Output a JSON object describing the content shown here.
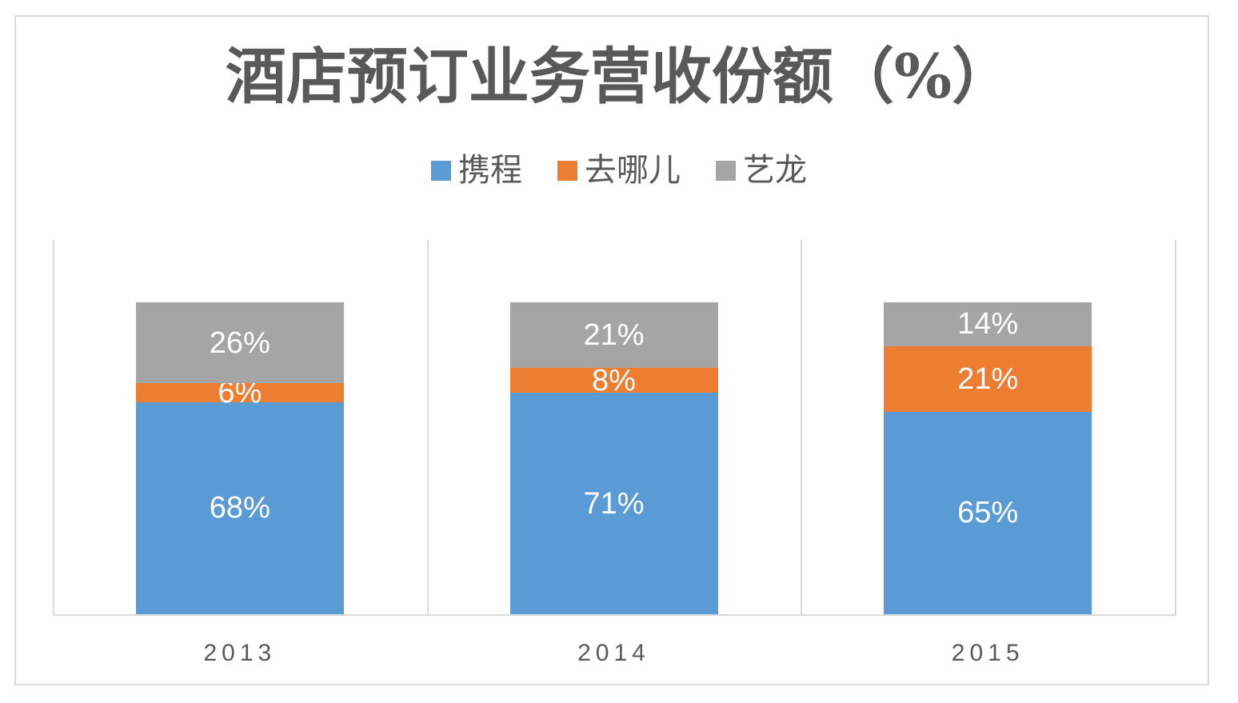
{
  "chart_data": {
    "type": "bar",
    "variant": "stacked-column",
    "title": "酒店预订业务营收份额（%）",
    "categories": [
      "2013",
      "2014",
      "2015"
    ],
    "series": [
      {
        "key": "ctrip",
        "name": "携程",
        "color": "#5B9BD5",
        "values": [
          68,
          71,
          65
        ]
      },
      {
        "key": "qunar",
        "name": "去哪儿",
        "color": "#ED7D31",
        "values": [
          6,
          8,
          21
        ]
      },
      {
        "key": "elong",
        "name": "艺龙",
        "color": "#A5A5A5",
        "values": [
          26,
          21,
          14
        ]
      }
    ],
    "data_label_suffix": "%",
    "data_labels_visible": true,
    "xlabel": "",
    "ylabel": "",
    "ylim": [
      0,
      120
    ],
    "legend_position": "top-center",
    "grid": "vertical lines at category boundaries only, no horizontal gridlines, no y-axis labels"
  },
  "style_colors": {
    "text": "#595959",
    "gridline": "#D9D9D9",
    "frame_border": "#D9D9D9",
    "data_label": "#FFFFFF",
    "background": "#FFFFFF"
  }
}
